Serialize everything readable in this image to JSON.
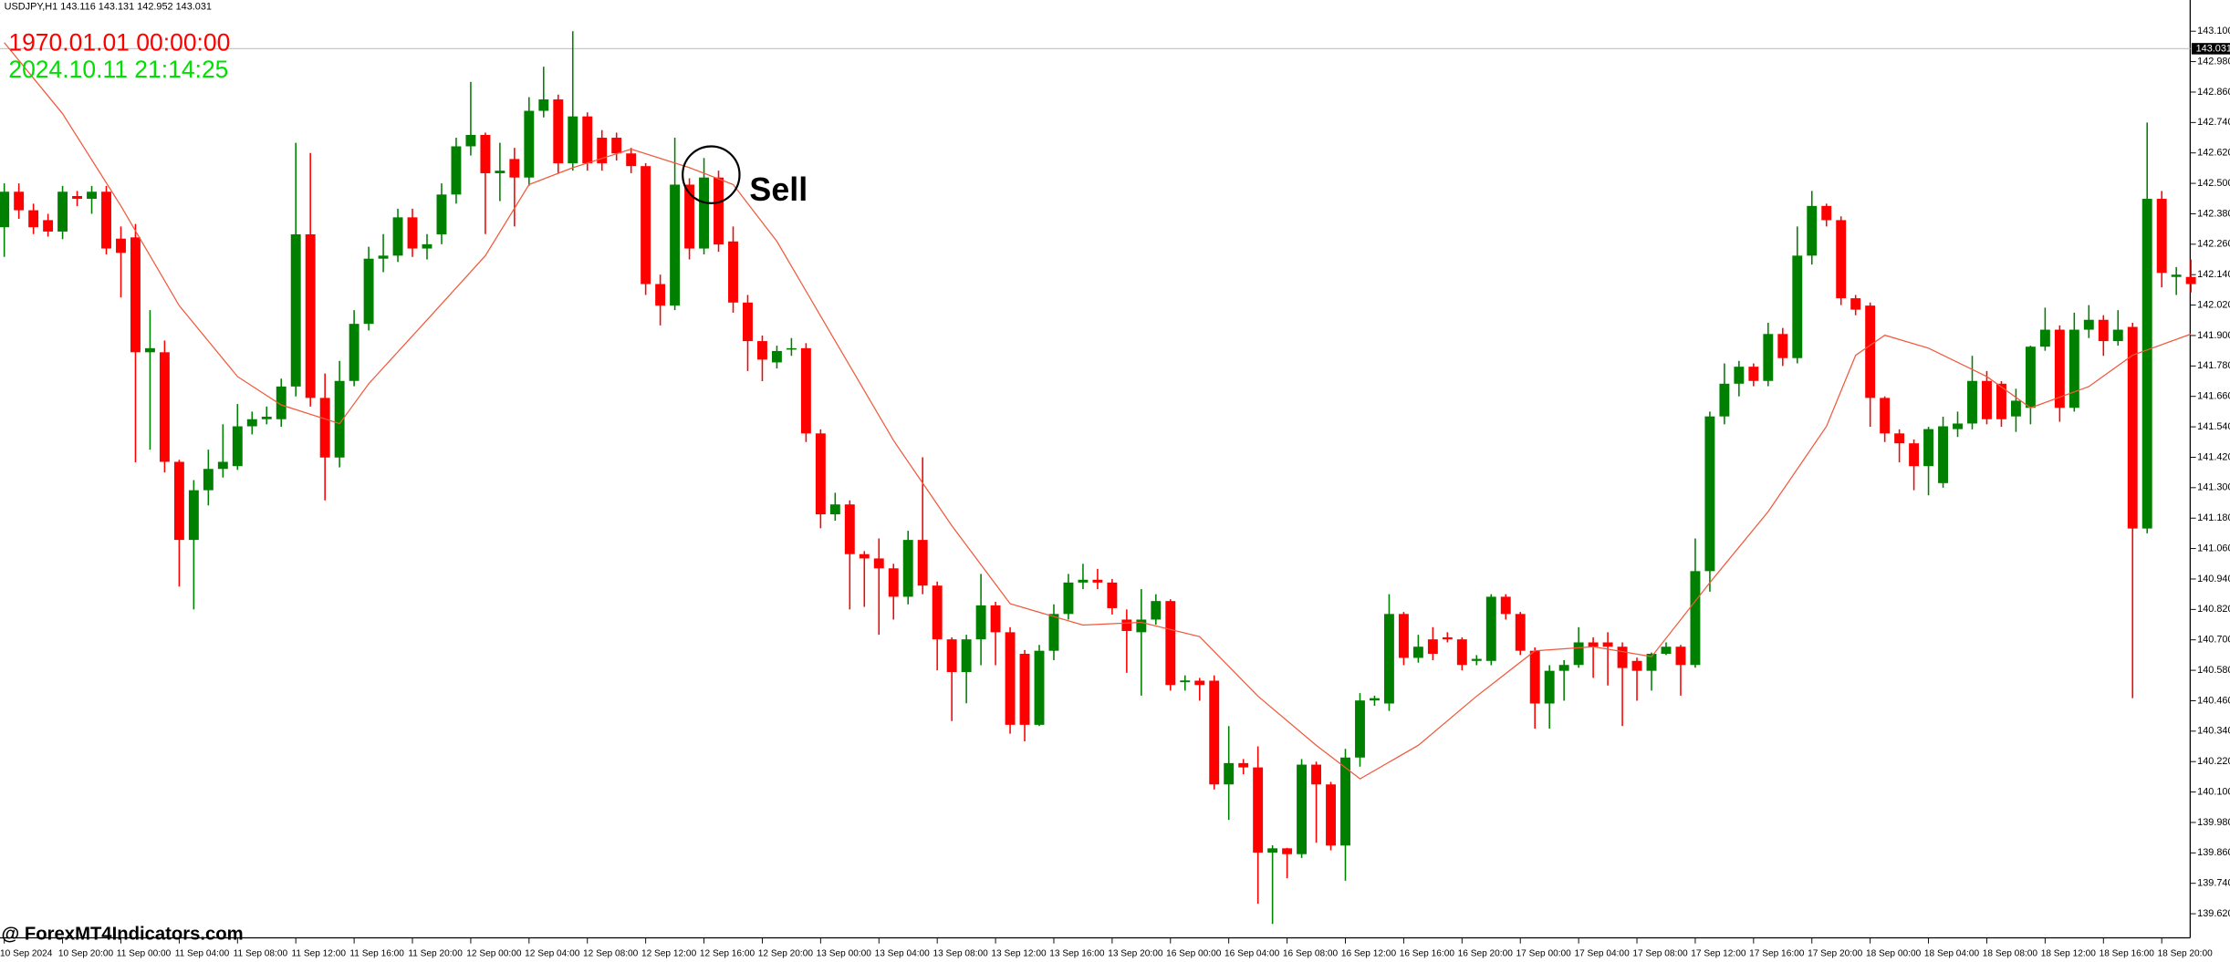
{
  "chart_data": {
    "type": "candlestick",
    "header": "USDJPY,H1  143.116 143.131 142.952 143.031",
    "time_start": "1970.01.01 00:00:00",
    "time_now": "2024.10.11 21:14:25",
    "annotation": "Sell",
    "watermark": "@ ForexMT4Indicators.com",
    "last_price": 143.031,
    "colors": {
      "up": "#008000",
      "down": "#ff0000",
      "ma": "#f05a3c",
      "price_line": "#c8c8c8",
      "price_box": "#000000"
    },
    "ylim": [
      139.525,
      143.223
    ],
    "yticks": [
      {
        "value": 139.62,
        "label": "139.620"
      },
      {
        "value": 139.74,
        "label": "139.740"
      },
      {
        "value": 139.86,
        "label": "139.860"
      },
      {
        "value": 139.98,
        "label": "139.980"
      },
      {
        "value": 140.1,
        "label": "140.100"
      },
      {
        "value": 140.22,
        "label": "140.220"
      },
      {
        "value": 140.34,
        "label": "140.340"
      },
      {
        "value": 140.46,
        "label": "140.460"
      },
      {
        "value": 140.58,
        "label": "140.580"
      },
      {
        "value": 140.7,
        "label": "140.700"
      },
      {
        "value": 140.82,
        "label": "140.820"
      },
      {
        "value": 140.94,
        "label": "140.940"
      },
      {
        "value": 141.06,
        "label": "141.060"
      },
      {
        "value": 141.18,
        "label": "141.180"
      },
      {
        "value": 141.3,
        "label": "141.300"
      },
      {
        "value": 141.42,
        "label": "141.420"
      },
      {
        "value": 141.54,
        "label": "141.540"
      },
      {
        "value": 141.66,
        "label": "141.660"
      },
      {
        "value": 141.78,
        "label": "141.780"
      },
      {
        "value": 141.9,
        "label": "141.900"
      },
      {
        "value": 142.02,
        "label": "142.020"
      },
      {
        "value": 142.14,
        "label": "142.140"
      },
      {
        "value": 142.26,
        "label": "142.260"
      },
      {
        "value": 142.38,
        "label": "142.380"
      },
      {
        "value": 142.5,
        "label": "142.500"
      },
      {
        "value": 142.62,
        "label": "142.620"
      },
      {
        "value": 142.74,
        "label": "142.740"
      },
      {
        "value": 142.86,
        "label": "142.860"
      },
      {
        "value": 142.98,
        "label": "142.980"
      },
      {
        "value": 143.1,
        "label": "143.100"
      }
    ],
    "xticks": [
      {
        "value": 0,
        "label": "10 Sep 2024"
      },
      {
        "value": 4,
        "label": "10 Sep 20:00"
      },
      {
        "value": 8,
        "label": "11 Sep 00:00"
      },
      {
        "value": 12,
        "label": "11 Sep 04:00"
      },
      {
        "value": 16,
        "label": "11 Sep 08:00"
      },
      {
        "value": 20,
        "label": "11 Sep 12:00"
      },
      {
        "value": 24,
        "label": "11 Sep 16:00"
      },
      {
        "value": 28,
        "label": "11 Sep 20:00"
      },
      {
        "value": 32,
        "label": "12 Sep 00:00"
      },
      {
        "value": 36,
        "label": "12 Sep 04:00"
      },
      {
        "value": 40,
        "label": "12 Sep 08:00"
      },
      {
        "value": 44,
        "label": "12 Sep 12:00"
      },
      {
        "value": 48,
        "label": "12 Sep 16:00"
      },
      {
        "value": 52,
        "label": "12 Sep 20:00"
      },
      {
        "value": 56,
        "label": "13 Sep 00:00"
      },
      {
        "value": 60,
        "label": "13 Sep 04:00"
      },
      {
        "value": 64,
        "label": "13 Sep 08:00"
      },
      {
        "value": 68,
        "label": "13 Sep 12:00"
      },
      {
        "value": 72,
        "label": "13 Sep 16:00"
      },
      {
        "value": 76,
        "label": "13 Sep 20:00"
      },
      {
        "value": 80,
        "label": "16 Sep 00:00"
      },
      {
        "value": 84,
        "label": "16 Sep 04:00"
      },
      {
        "value": 88,
        "label": "16 Sep 08:00"
      },
      {
        "value": 92,
        "label": "16 Sep 12:00"
      },
      {
        "value": 96,
        "label": "16 Sep 16:00"
      },
      {
        "value": 100,
        "label": "16 Sep 20:00"
      },
      {
        "value": 104,
        "label": "17 Sep 00:00"
      },
      {
        "value": 108,
        "label": "17 Sep 04:00"
      },
      {
        "value": 112,
        "label": "17 Sep 08:00"
      },
      {
        "value": 116,
        "label": "17 Sep 12:00"
      },
      {
        "value": 120,
        "label": "17 Sep 16:00"
      },
      {
        "value": 124,
        "label": "17 Sep 20:00"
      },
      {
        "value": 128,
        "label": "18 Sep 00:00"
      },
      {
        "value": 132,
        "label": "18 Sep 04:00"
      },
      {
        "value": 136,
        "label": "18 Sep 08:00"
      },
      {
        "value": 140,
        "label": "18 Sep 12:00"
      },
      {
        "value": 144,
        "label": "18 Sep 16:00"
      },
      {
        "value": 148,
        "label": "18 Sep 20:00"
      }
    ],
    "ohlc": [
      [
        142.327,
        142.5,
        142.21,
        142.467
      ],
      [
        142.467,
        142.5,
        142.36,
        142.394
      ],
      [
        142.394,
        142.42,
        142.3,
        142.327
      ],
      [
        142.355,
        142.38,
        142.29,
        142.31
      ],
      [
        142.31,
        142.49,
        142.28,
        142.467
      ],
      [
        142.45,
        142.47,
        142.41,
        142.439
      ],
      [
        142.439,
        142.49,
        142.38,
        142.467
      ],
      [
        142.467,
        142.49,
        142.22,
        142.243
      ],
      [
        142.282,
        142.33,
        142.05,
        142.226
      ],
      [
        142.287,
        142.34,
        141.4,
        141.834
      ],
      [
        141.834,
        142.0,
        141.45,
        141.85
      ],
      [
        141.834,
        141.88,
        141.36,
        141.402
      ],
      [
        141.402,
        141.41,
        140.91,
        141.094
      ],
      [
        141.094,
        141.33,
        140.82,
        141.29
      ],
      [
        141.29,
        141.45,
        141.23,
        141.374
      ],
      [
        141.374,
        141.55,
        141.34,
        141.402
      ],
      [
        141.385,
        141.63,
        141.37,
        141.542
      ],
      [
        141.542,
        141.6,
        141.51,
        141.57
      ],
      [
        141.57,
        141.62,
        141.55,
        141.58
      ],
      [
        141.57,
        141.73,
        141.54,
        141.699
      ],
      [
        141.699,
        142.66,
        141.66,
        142.299
      ],
      [
        142.299,
        142.62,
        141.62,
        141.654
      ],
      [
        141.654,
        141.75,
        141.25,
        141.419
      ],
      [
        141.419,
        141.8,
        141.38,
        141.721
      ],
      [
        141.721,
        142.0,
        141.7,
        141.946
      ],
      [
        141.946,
        142.25,
        141.92,
        142.203
      ],
      [
        142.203,
        142.3,
        142.15,
        142.215
      ],
      [
        142.215,
        142.4,
        142.19,
        142.366
      ],
      [
        142.366,
        142.4,
        142.21,
        142.243
      ],
      [
        142.243,
        142.3,
        142.2,
        142.26
      ],
      [
        142.299,
        142.5,
        142.26,
        142.456
      ],
      [
        142.456,
        142.68,
        142.42,
        142.646
      ],
      [
        142.646,
        142.9,
        142.61,
        142.691
      ],
      [
        142.691,
        142.7,
        142.3,
        142.54
      ],
      [
        142.54,
        142.66,
        142.43,
        142.55
      ],
      [
        142.596,
        142.64,
        142.33,
        142.523
      ],
      [
        142.523,
        142.84,
        142.49,
        142.786
      ],
      [
        142.786,
        142.96,
        142.76,
        142.831
      ],
      [
        142.831,
        142.85,
        142.54,
        142.579
      ],
      [
        142.579,
        143.1,
        142.55,
        142.764
      ],
      [
        142.764,
        142.78,
        142.55,
        142.579
      ],
      [
        142.68,
        142.71,
        142.55,
        142.579
      ],
      [
        142.68,
        142.7,
        142.59,
        142.618
      ],
      [
        142.618,
        142.64,
        142.54,
        142.568
      ],
      [
        142.568,
        142.58,
        142.06,
        142.103
      ],
      [
        142.103,
        142.14,
        141.94,
        142.018
      ],
      [
        142.018,
        142.68,
        142.0,
        142.495
      ],
      [
        142.495,
        142.52,
        142.2,
        142.243
      ],
      [
        142.243,
        142.6,
        142.22,
        142.523
      ],
      [
        142.523,
        142.55,
        142.23,
        142.259
      ],
      [
        142.271,
        142.33,
        141.99,
        142.03
      ],
      [
        142.03,
        142.06,
        141.76,
        141.878
      ],
      [
        141.878,
        141.9,
        141.72,
        141.805
      ],
      [
        141.794,
        141.86,
        141.77,
        141.839
      ],
      [
        141.845,
        141.89,
        141.82,
        141.85
      ],
      [
        141.85,
        141.87,
        141.48,
        141.514
      ],
      [
        141.514,
        141.53,
        141.14,
        141.195
      ],
      [
        141.195,
        141.28,
        141.17,
        141.234
      ],
      [
        141.234,
        141.25,
        140.82,
        141.038
      ],
      [
        141.038,
        141.05,
        140.83,
        141.021
      ],
      [
        141.021,
        141.1,
        140.72,
        140.982
      ],
      [
        140.982,
        141.0,
        140.78,
        140.87
      ],
      [
        140.87,
        141.13,
        140.84,
        141.094
      ],
      [
        141.094,
        141.42,
        140.88,
        140.914
      ],
      [
        140.914,
        140.93,
        140.58,
        140.702
      ],
      [
        140.702,
        140.71,
        140.38,
        140.573
      ],
      [
        140.573,
        140.72,
        140.45,
        140.702
      ],
      [
        140.702,
        140.96,
        140.6,
        140.836
      ],
      [
        140.836,
        140.85,
        140.6,
        140.73
      ],
      [
        140.73,
        140.75,
        140.33,
        140.365
      ],
      [
        140.645,
        140.66,
        140.3,
        140.365
      ],
      [
        140.365,
        140.68,
        140.36,
        140.657
      ],
      [
        140.657,
        140.84,
        140.62,
        140.802
      ],
      [
        140.802,
        140.96,
        140.78,
        140.926
      ],
      [
        140.926,
        141.0,
        140.9,
        140.937
      ],
      [
        140.937,
        140.98,
        140.9,
        140.926
      ],
      [
        140.926,
        140.94,
        140.8,
        140.825
      ],
      [
        140.78,
        140.82,
        140.57,
        140.735
      ],
      [
        140.73,
        140.9,
        140.48,
        140.78
      ],
      [
        140.78,
        140.88,
        140.76,
        140.853
      ],
      [
        140.853,
        140.86,
        140.5,
        140.522
      ],
      [
        140.533,
        140.56,
        140.5,
        140.54
      ],
      [
        140.539,
        140.55,
        140.46,
        140.522
      ],
      [
        140.539,
        140.56,
        140.11,
        140.13
      ],
      [
        140.13,
        140.36,
        139.99,
        140.214
      ],
      [
        140.214,
        140.23,
        140.17,
        140.197
      ],
      [
        140.197,
        140.28,
        139.66,
        139.861
      ],
      [
        139.861,
        139.89,
        139.58,
        139.878
      ],
      [
        139.878,
        139.88,
        139.76,
        139.855
      ],
      [
        139.855,
        140.23,
        139.84,
        140.208
      ],
      [
        140.208,
        140.22,
        139.9,
        140.13
      ],
      [
        140.13,
        140.14,
        139.87,
        139.889
      ],
      [
        139.889,
        140.27,
        139.75,
        140.236
      ],
      [
        140.236,
        140.49,
        140.2,
        140.461
      ],
      [
        140.461,
        140.48,
        140.44,
        140.47
      ],
      [
        140.449,
        140.88,
        140.42,
        140.802
      ],
      [
        140.802,
        140.81,
        140.6,
        140.629
      ],
      [
        140.629,
        140.72,
        140.61,
        140.673
      ],
      [
        140.702,
        140.75,
        140.62,
        140.645
      ],
      [
        140.71,
        140.73,
        140.69,
        140.702
      ],
      [
        140.702,
        140.71,
        140.58,
        140.601
      ],
      [
        140.617,
        140.64,
        140.6,
        140.625
      ],
      [
        140.617,
        140.88,
        140.6,
        140.87
      ],
      [
        140.87,
        140.88,
        140.78,
        140.802
      ],
      [
        140.802,
        140.81,
        140.64,
        140.657
      ],
      [
        140.657,
        140.67,
        140.35,
        140.449
      ],
      [
        140.449,
        140.6,
        140.35,
        140.578
      ],
      [
        140.578,
        140.62,
        140.46,
        140.601
      ],
      [
        140.601,
        140.75,
        140.59,
        140.69
      ],
      [
        140.69,
        140.71,
        140.55,
        140.673
      ],
      [
        140.69,
        140.73,
        140.52,
        140.673
      ],
      [
        140.673,
        140.69,
        140.36,
        140.589
      ],
      [
        140.617,
        140.63,
        140.46,
        140.578
      ],
      [
        140.578,
        140.65,
        140.5,
        140.645
      ],
      [
        140.645,
        140.69,
        140.64,
        140.673
      ],
      [
        140.673,
        140.68,
        140.48,
        140.601
      ],
      [
        140.601,
        141.1,
        140.59,
        140.971
      ],
      [
        140.971,
        141.6,
        140.89,
        141.581
      ],
      [
        141.581,
        141.79,
        141.55,
        141.71
      ],
      [
        141.71,
        141.8,
        141.66,
        141.777
      ],
      [
        141.777,
        141.79,
        141.7,
        141.721
      ],
      [
        141.721,
        141.95,
        141.7,
        141.906
      ],
      [
        141.906,
        141.93,
        141.78,
        141.811
      ],
      [
        141.811,
        142.33,
        141.79,
        142.215
      ],
      [
        142.215,
        142.47,
        142.18,
        142.411
      ],
      [
        142.411,
        142.42,
        142.33,
        142.355
      ],
      [
        142.355,
        142.37,
        142.02,
        142.047
      ],
      [
        142.047,
        142.06,
        141.98,
        142.002
      ],
      [
        142.018,
        142.03,
        141.54,
        141.654
      ],
      [
        141.654,
        141.66,
        141.48,
        141.514
      ],
      [
        141.514,
        141.53,
        141.4,
        141.475
      ],
      [
        141.475,
        141.49,
        141.29,
        141.385
      ],
      [
        141.385,
        141.54,
        141.27,
        141.531
      ],
      [
        141.318,
        141.58,
        141.3,
        141.542
      ],
      [
        141.531,
        141.6,
        141.5,
        141.553
      ],
      [
        141.553,
        141.82,
        141.53,
        141.721
      ],
      [
        141.721,
        141.76,
        141.55,
        141.57
      ],
      [
        141.71,
        141.72,
        141.54,
        141.57
      ],
      [
        141.581,
        141.69,
        141.52,
        141.643
      ],
      [
        141.615,
        141.86,
        141.55,
        141.856
      ],
      [
        141.856,
        142.01,
        141.84,
        141.923
      ],
      [
        141.923,
        141.94,
        141.56,
        141.615
      ],
      [
        141.615,
        141.99,
        141.6,
        141.923
      ],
      [
        141.923,
        142.02,
        141.89,
        141.962
      ],
      [
        141.962,
        141.98,
        141.82,
        141.878
      ],
      [
        141.878,
        142.0,
        141.86,
        141.923
      ],
      [
        141.934,
        141.95,
        140.47,
        141.139
      ],
      [
        141.139,
        142.74,
        141.12,
        142.439
      ],
      [
        142.439,
        142.47,
        142.09,
        142.147
      ],
      [
        142.131,
        142.17,
        142.06,
        142.14
      ],
      [
        142.131,
        142.2,
        142.07,
        142.103
      ]
    ],
    "ma": {
      "x": [
        0,
        4,
        8,
        12,
        16,
        19,
        23,
        25,
        29,
        33,
        36,
        39,
        43,
        47,
        50,
        53,
        57,
        61,
        65,
        69,
        74,
        78,
        82,
        86,
        90,
        93,
        97,
        101,
        105,
        109,
        113,
        117,
        121,
        125,
        127,
        129,
        132,
        136,
        139,
        143,
        146,
        150
      ],
      "values": [
        143.055,
        142.775,
        142.411,
        142.018,
        141.738,
        141.626,
        141.553,
        141.71,
        141.962,
        142.215,
        142.495,
        142.562,
        142.635,
        142.562,
        142.495,
        142.271,
        141.878,
        141.486,
        141.15,
        140.842,
        140.758,
        140.769,
        140.713,
        140.478,
        140.284,
        140.152,
        140.284,
        140.478,
        140.657,
        140.673,
        140.634,
        140.926,
        141.206,
        141.542,
        141.822,
        141.901,
        141.85,
        141.738,
        141.615,
        141.699,
        141.822,
        141.906
      ]
    }
  }
}
